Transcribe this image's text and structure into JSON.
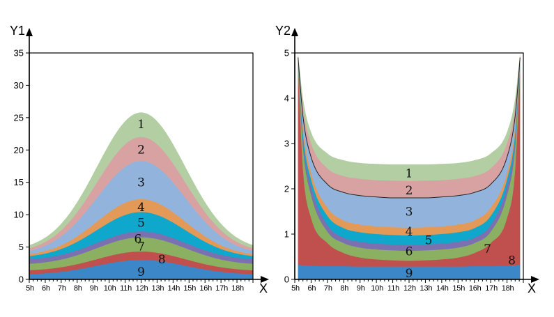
{
  "chart_data": [
    {
      "type": "area",
      "stacked": true,
      "ylabel": "Y1",
      "xlabel": "X",
      "ylim": [
        0,
        35
      ],
      "yticks": [
        "0",
        "5",
        "10",
        "15",
        "20",
        "25",
        "30",
        "35"
      ],
      "xlim": [
        5,
        19
      ],
      "xticks": [
        "5h",
        "6h",
        "7h",
        "8h",
        "9h",
        "10h",
        "11h",
        "12h",
        "13h",
        "14h",
        "15h",
        "16h",
        "17h",
        "18h"
      ],
      "x": [
        5,
        12,
        19
      ],
      "series": [
        {
          "label": "9",
          "color": "#3b87c8",
          "values": [
            0.8,
            3.0,
            0.8
          ]
        },
        {
          "label": "8",
          "color": "#c0504d",
          "values": [
            1.4,
            4.3,
            1.4
          ]
        },
        {
          "label": "7",
          "color": "#8cb062",
          "values": [
            2.4,
            6.5,
            2.4
          ]
        },
        {
          "label": "6",
          "color": "#7b71b0",
          "values": [
            3.1,
            7.4,
            3.1
          ]
        },
        {
          "label": "5",
          "color": "#0fa8cc",
          "values": [
            3.6,
            10.4,
            3.6
          ]
        },
        {
          "label": "4",
          "color": "#e39a58",
          "values": [
            3.9,
            12.4,
            3.9
          ]
        },
        {
          "label": "3",
          "color": "#92b4dc",
          "values": [
            4.4,
            18.3,
            4.4
          ]
        },
        {
          "label": "2",
          "color": "#d8a2a2",
          "values": [
            4.8,
            22.0,
            4.8
          ]
        },
        {
          "label": "1",
          "color": "#b2cea2",
          "values": [
            5.3,
            25.8,
            5.3
          ]
        }
      ]
    },
    {
      "type": "area",
      "stacked": true,
      "ylabel": "Y2",
      "xlabel": "X",
      "ylim": [
        0,
        5
      ],
      "yticks": [
        "0",
        "1",
        "2",
        "3",
        "4",
        "5"
      ],
      "xlim": [
        5,
        19
      ],
      "xticks": [
        "5h",
        "6h",
        "7h",
        "8h",
        "9h",
        "10h",
        "11h",
        "12h",
        "13h",
        "14h",
        "15h",
        "16h",
        "17h",
        "18h"
      ],
      "x": [
        5.2,
        5.5,
        6,
        7,
        8,
        9,
        10,
        11,
        12,
        13,
        14,
        15,
        16,
        17,
        18,
        18.5,
        18.8
      ],
      "series": [
        {
          "label": "9",
          "color": "#3b87c8",
          "values": [
            0.32,
            0.31,
            0.3,
            0.29,
            0.29,
            0.28,
            0.28,
            0.28,
            0.28,
            0.28,
            0.28,
            0.28,
            0.29,
            0.29,
            0.3,
            0.31,
            0.32
          ]
        },
        {
          "label": "8",
          "color": "#c0504d",
          "values": [
            4.6,
            2.4,
            1.35,
            0.8,
            0.58,
            0.48,
            0.44,
            0.42,
            0.41,
            0.42,
            0.44,
            0.48,
            0.58,
            0.8,
            1.35,
            2.4,
            4.6
          ]
        },
        {
          "label": "7",
          "color": "#8cb062",
          "values": [
            4.7,
            2.9,
            1.85,
            1.05,
            0.8,
            0.7,
            0.66,
            0.64,
            0.63,
            0.64,
            0.66,
            0.7,
            0.8,
            1.05,
            1.85,
            2.9,
            4.7
          ]
        },
        {
          "label": "6",
          "color": "#7b71b0",
          "values": [
            4.75,
            3.05,
            2.05,
            1.2,
            0.92,
            0.83,
            0.79,
            0.77,
            0.76,
            0.77,
            0.79,
            0.83,
            0.92,
            1.2,
            2.05,
            3.05,
            4.75
          ]
        },
        {
          "label": "5",
          "color": "#0fa8cc",
          "values": [
            4.8,
            3.2,
            2.2,
            1.4,
            1.13,
            1.04,
            1.0,
            0.98,
            0.97,
            0.98,
            1.0,
            1.04,
            1.13,
            1.4,
            2.2,
            3.2,
            4.8
          ]
        },
        {
          "label": "4",
          "color": "#e39a58",
          "values": [
            4.85,
            3.35,
            2.35,
            1.58,
            1.3,
            1.21,
            1.17,
            1.15,
            1.14,
            1.15,
            1.17,
            1.21,
            1.3,
            1.58,
            2.35,
            3.35,
            4.85
          ]
        },
        {
          "label": "3",
          "color": "#92b4dc",
          "values": [
            4.9,
            3.6,
            2.7,
            2.1,
            1.92,
            1.85,
            1.82,
            1.8,
            1.8,
            1.8,
            1.82,
            1.85,
            1.92,
            2.1,
            2.7,
            3.6,
            4.9
          ]
        },
        {
          "label": "2",
          "color": "#d8a2a2",
          "values": [
            4.95,
            3.8,
            3.0,
            2.45,
            2.28,
            2.22,
            2.19,
            2.18,
            2.17,
            2.18,
            2.19,
            2.22,
            2.28,
            2.45,
            3.0,
            3.8,
            4.95
          ]
        },
        {
          "label": "1",
          "color": "#b2cea2",
          "values": [
            5.0,
            4.0,
            3.25,
            2.78,
            2.63,
            2.57,
            2.55,
            2.54,
            2.54,
            2.54,
            2.55,
            2.57,
            2.63,
            2.78,
            3.25,
            4.0,
            5.0
          ]
        }
      ]
    }
  ]
}
